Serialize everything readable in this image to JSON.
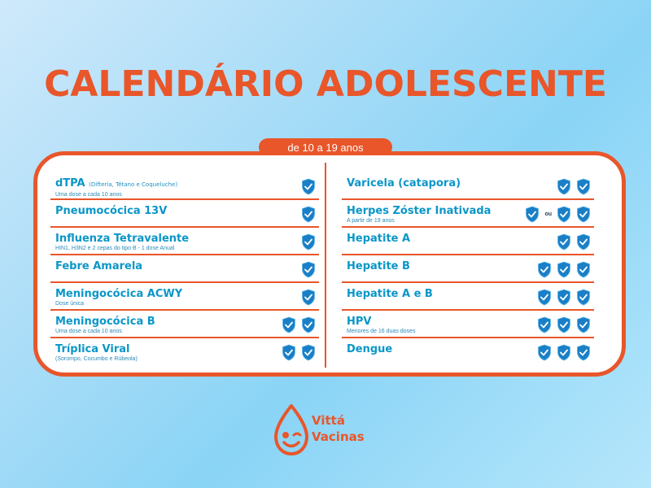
{
  "title": "CALENDÁRIO ADOLESCENTE",
  "age_range": "de 10 a 19 anos",
  "separator_ou": "ou",
  "colors": {
    "accent": "#e8562a",
    "name_blue": "#0a96c8",
    "shield": "#1a7fc6"
  },
  "left_vaccines": [
    {
      "name": "dTPA",
      "inline_note": "(Difteria, Tétano e Coqueluche)",
      "note": "Uma dose a cada 10 anos",
      "doses": 1
    },
    {
      "name": "Pneumocócica 13V",
      "inline_note": "",
      "note": "",
      "doses": 1
    },
    {
      "name": "Influenza Tetravalente",
      "inline_note": "",
      "note": "HIN1, H3N2 e 2 cepas do tipo B - 1 dose Anual",
      "doses": 1
    },
    {
      "name": "Febre Amarela",
      "inline_note": "",
      "note": "",
      "doses": 1
    },
    {
      "name": "Meningocócica ACWY",
      "inline_note": "",
      "note": "Dose única",
      "doses": 1
    },
    {
      "name": "Meningocócica B",
      "inline_note": "",
      "note": "Uma dose a cada 10 anos",
      "doses": 2
    },
    {
      "name": "Tríplica Viral",
      "inline_note": "",
      "note": "(Sorompo, Cocumbo e Rúbeola)",
      "doses": 2
    }
  ],
  "right_vaccines": [
    {
      "name": "Varicela (catapora)",
      "inline_note": "",
      "note": "",
      "doses": 2
    },
    {
      "name": "Herpes Zóster Inativada",
      "inline_note": "",
      "note": "A partir de 19 anos",
      "doses": 2,
      "alt_doses": 1
    },
    {
      "name": "Hepatite A",
      "inline_note": "",
      "note": "",
      "doses": 2
    },
    {
      "name": "Hepatite B",
      "inline_note": "",
      "note": "",
      "doses": 3
    },
    {
      "name": "Hepatite A e B",
      "inline_note": "",
      "note": "",
      "doses": 3
    },
    {
      "name": "HPV",
      "inline_note": "",
      "note": "Menores de 16 duas doses",
      "doses": 3
    },
    {
      "name": "Dengue",
      "inline_note": "",
      "note": "",
      "doses": 3
    }
  ],
  "logo": {
    "line1": "Vittá",
    "line2": "Vacinas"
  }
}
